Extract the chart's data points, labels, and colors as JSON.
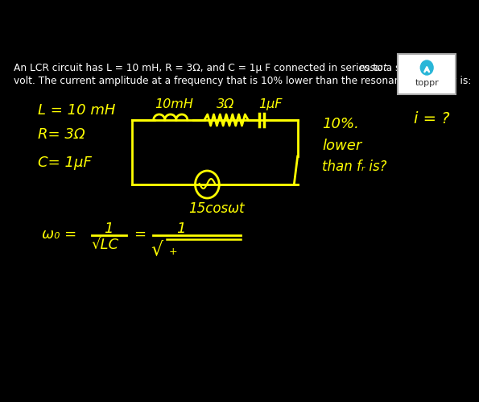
{
  "bg_color": "#000000",
  "header_color": "#ffffff",
  "hw_color": "#ffff00",
  "toppr_icon_color": "#29b6d8",
  "header_line1": "An LCR circuit has L = 10 mH, R = 3Ω, and C = 1μ F connected in series to a source of 15",
  "header_line1_italic": "cosωt",
  "header_line2": "volt. The current amplitude at a frequency that is 10% lower than the resonant frequency is:",
  "given1": "L = 10 mH",
  "given2": "R= 3Ω",
  "given3": "C= 1μF",
  "circ_lbl_L": "10mH",
  "circ_lbl_R": "3Ω",
  "circ_lbl_C": "1μF",
  "source_lbl": "15cosωt",
  "right1": "10%.",
  "right2": "lower",
  "right3": "than fᵣ is?",
  "far_right": "i = ?",
  "w0_lbl": "ω₀ =",
  "frac1_num": "1",
  "frac1_den": "√LC",
  "equals2": "=",
  "frac2_num": "1"
}
